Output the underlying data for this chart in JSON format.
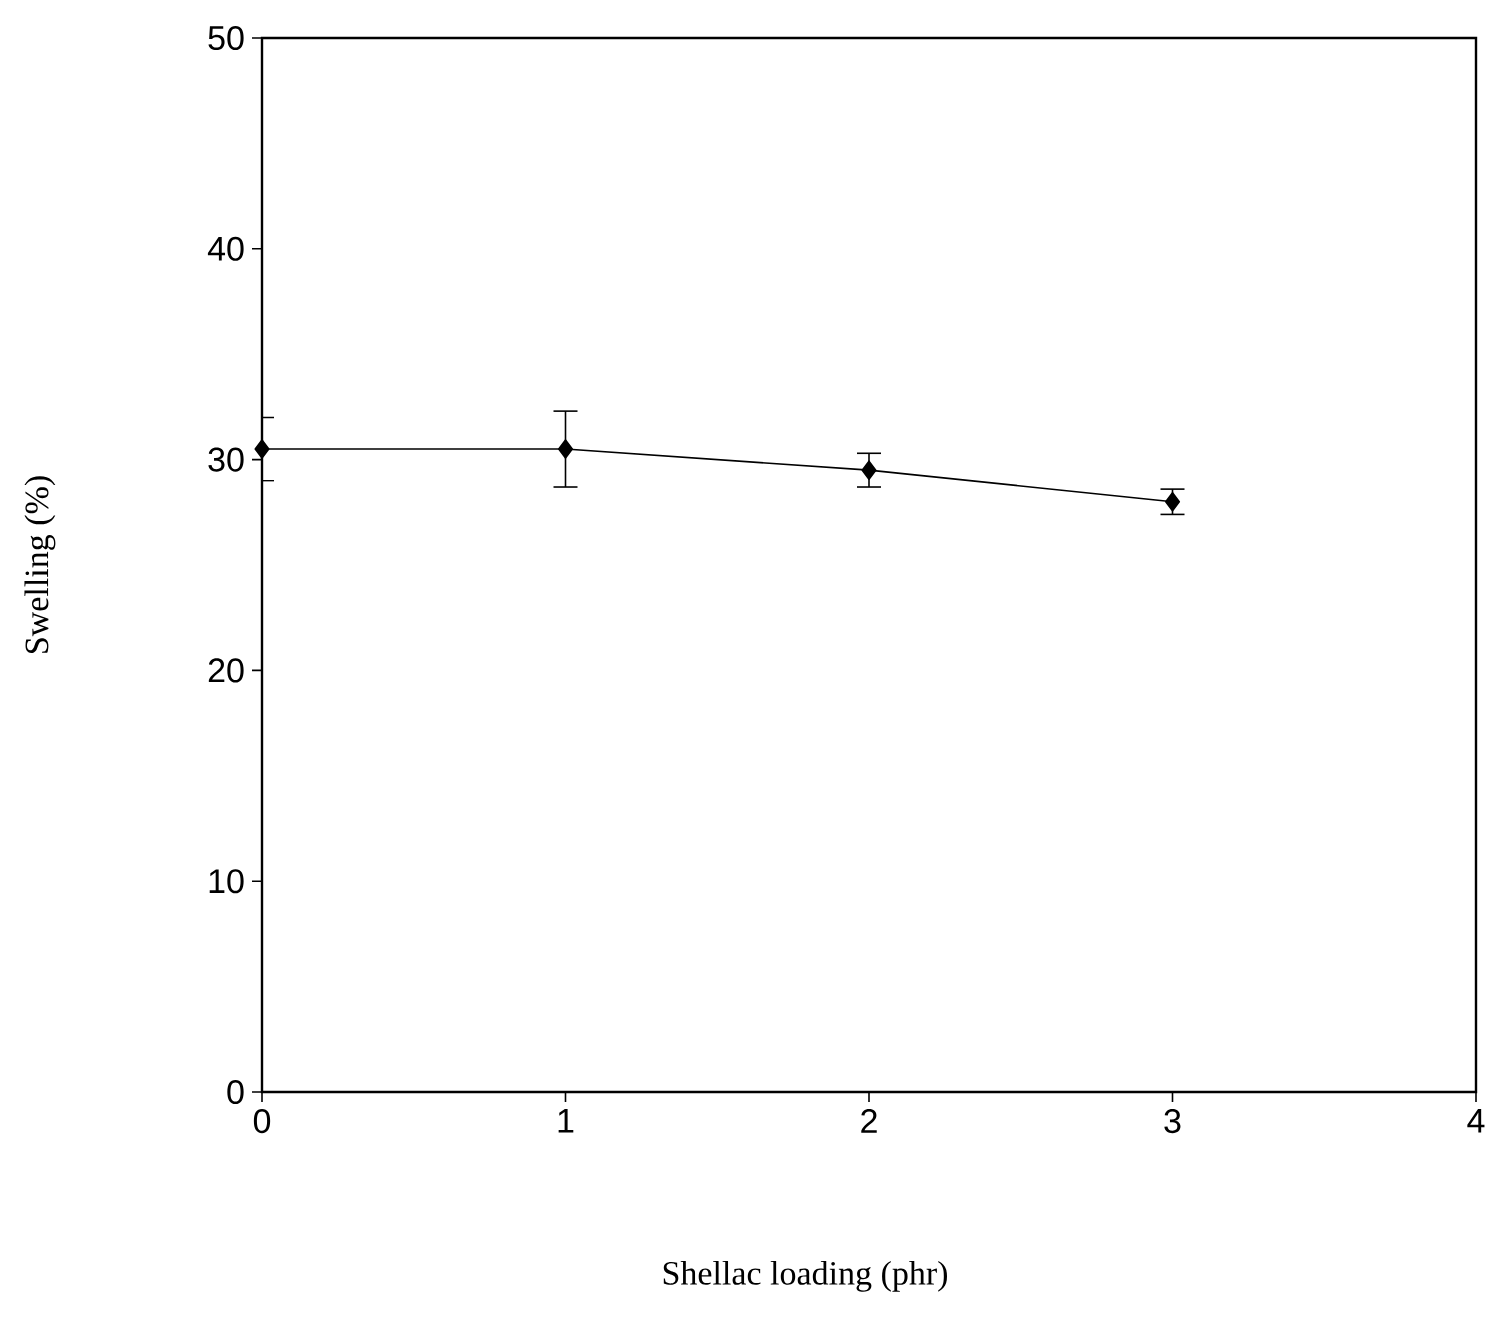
{
  "chart_data": {
    "type": "line",
    "xlabel": "Shellac loading (phr)",
    "ylabel": "Swelling (%)",
    "x": [
      0,
      1,
      2,
      3
    ],
    "series": [
      {
        "color": "#000000",
        "values": [
          30.5,
          30.5,
          29.5,
          28.0
        ],
        "errors": [
          1.5,
          1.8,
          0.8,
          0.6
        ]
      }
    ],
    "xlim": [
      0,
      4
    ],
    "ylim": [
      0,
      50
    ],
    "xticks": [
      0,
      1,
      2,
      3,
      4
    ],
    "yticks": [
      0,
      10,
      20,
      30,
      40,
      50
    ],
    "marker": "diamond",
    "line_style": "solid",
    "grid": false
  }
}
